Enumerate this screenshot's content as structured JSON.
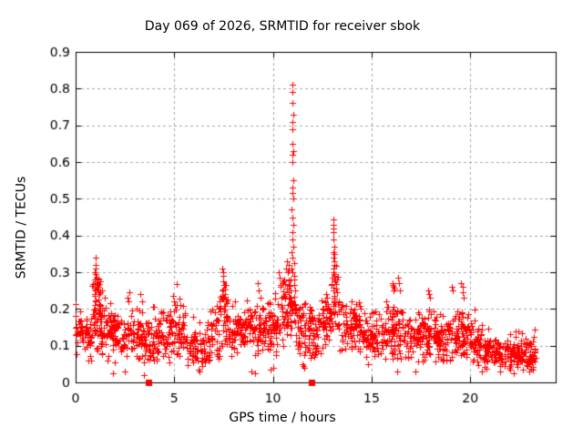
{
  "chart_data": {
    "type": "scatter",
    "title": "Day 069 of 2026, SRMTID for receiver sbok",
    "xlabel": "GPS time / hours",
    "ylabel": "SRMTID / TECUs",
    "xlim": [
      0,
      24.33
    ],
    "ylim": [
      0,
      0.9
    ],
    "xtick_values": [
      0,
      5,
      10,
      15,
      20
    ],
    "xtick_labels": [
      "0",
      "5",
      "10",
      "15",
      "20"
    ],
    "ytick_values": [
      0,
      0.1,
      0.2,
      0.3,
      0.4,
      0.5,
      0.6,
      0.7,
      0.8,
      0.9
    ],
    "ytick_labels": [
      "0",
      "0.1",
      "0.2",
      "0.3",
      "0.4",
      "0.5",
      "0.6",
      "0.7",
      "0.8",
      "0.9"
    ],
    "grid": true,
    "legend": "none",
    "marker": "plus",
    "marker_color": "#ff0000",
    "grid_color": "#a6a6a6",
    "frame_color": "#000000",
    "scatter_band_segments": [
      [
        0.0,
        0.3,
        26,
        0.14,
        0.07
      ],
      [
        0.3,
        0.8,
        42,
        0.12,
        0.07
      ],
      [
        0.8,
        1.25,
        48,
        0.19,
        0.11
      ],
      [
        1.25,
        1.8,
        46,
        0.14,
        0.09
      ],
      [
        1.8,
        2.6,
        62,
        0.12,
        0.07
      ],
      [
        2.6,
        3.4,
        60,
        0.13,
        0.08
      ],
      [
        3.4,
        4.2,
        60,
        0.11,
        0.07
      ],
      [
        4.2,
        5.0,
        62,
        0.13,
        0.08
      ],
      [
        5.0,
        5.6,
        46,
        0.14,
        0.08
      ],
      [
        5.6,
        6.1,
        34,
        0.1,
        0.06
      ],
      [
        6.1,
        6.6,
        28,
        0.085,
        0.055
      ],
      [
        6.6,
        7.3,
        50,
        0.13,
        0.08
      ],
      [
        7.3,
        7.7,
        36,
        0.18,
        0.1
      ],
      [
        7.7,
        8.6,
        66,
        0.14,
        0.08
      ],
      [
        8.6,
        9.6,
        72,
        0.15,
        0.09
      ],
      [
        9.6,
        10.4,
        62,
        0.16,
        0.09
      ],
      [
        10.4,
        10.75,
        30,
        0.19,
        0.1
      ],
      [
        10.75,
        11.15,
        46,
        0.24,
        0.14
      ],
      [
        11.15,
        11.7,
        44,
        0.15,
        0.09
      ],
      [
        11.7,
        12.4,
        56,
        0.13,
        0.08
      ],
      [
        12.4,
        12.95,
        46,
        0.16,
        0.09
      ],
      [
        12.95,
        13.35,
        36,
        0.22,
        0.12
      ],
      [
        13.35,
        14.5,
        86,
        0.15,
        0.08
      ],
      [
        14.5,
        15.5,
        76,
        0.13,
        0.08
      ],
      [
        15.5,
        16.7,
        92,
        0.14,
        0.08
      ],
      [
        16.7,
        18.3,
        118,
        0.13,
        0.08
      ],
      [
        18.3,
        19.3,
        76,
        0.12,
        0.07
      ],
      [
        19.3,
        20.0,
        56,
        0.13,
        0.08
      ],
      [
        20.0,
        20.7,
        50,
        0.11,
        0.07
      ],
      [
        20.7,
        21.5,
        62,
        0.08,
        0.05
      ],
      [
        21.5,
        22.5,
        78,
        0.075,
        0.045
      ],
      [
        22.5,
        23.3,
        64,
        0.08,
        0.05
      ]
    ],
    "scatter_peak_points": [
      [
        0.95,
        0.24
      ],
      [
        0.97,
        0.3
      ],
      [
        0.98,
        0.28
      ],
      [
        1.0,
        0.34
      ],
      [
        1.0,
        0.32
      ],
      [
        1.0,
        0.25
      ],
      [
        1.02,
        0.31
      ],
      [
        1.03,
        0.295
      ],
      [
        1.04,
        0.285
      ],
      [
        1.05,
        0.275
      ],
      [
        1.08,
        0.27
      ],
      [
        1.1,
        0.265
      ],
      [
        1.13,
        0.255
      ],
      [
        1.15,
        0.28
      ],
      [
        1.17,
        0.26
      ],
      [
        1.2,
        0.24
      ],
      [
        1.35,
        0.25
      ],
      [
        1.5,
        0.23
      ],
      [
        2.65,
        0.23
      ],
      [
        2.7,
        0.22
      ],
      [
        3.3,
        0.24
      ],
      [
        3.35,
        0.22
      ],
      [
        4.95,
        0.235
      ],
      [
        5.0,
        0.22
      ],
      [
        5.05,
        0.21
      ],
      [
        7.42,
        0.235
      ],
      [
        7.44,
        0.25
      ],
      [
        7.45,
        0.31
      ],
      [
        7.46,
        0.275
      ],
      [
        7.48,
        0.3
      ],
      [
        7.5,
        0.29
      ],
      [
        7.5,
        0.23
      ],
      [
        7.52,
        0.265
      ],
      [
        7.55,
        0.24
      ],
      [
        7.6,
        0.22
      ],
      [
        8.1,
        0.22
      ],
      [
        9.25,
        0.27
      ],
      [
        9.3,
        0.25
      ],
      [
        9.35,
        0.23
      ],
      [
        10.3,
        0.3
      ],
      [
        10.35,
        0.285
      ],
      [
        10.4,
        0.26
      ],
      [
        10.5,
        0.27
      ],
      [
        10.55,
        0.28
      ],
      [
        10.6,
        0.24
      ],
      [
        10.65,
        0.31
      ],
      [
        10.7,
        0.33
      ],
      [
        11.0,
        0.81
      ],
      [
        11.0,
        0.79
      ],
      [
        10.98,
        0.76
      ],
      [
        11.02,
        0.73
      ],
      [
        11.0,
        0.71
      ],
      [
        10.98,
        0.69
      ],
      [
        11.0,
        0.65
      ],
      [
        11.02,
        0.63
      ],
      [
        10.98,
        0.62
      ],
      [
        11.0,
        0.6
      ],
      [
        11.03,
        0.55
      ],
      [
        10.97,
        0.53
      ],
      [
        11.0,
        0.515
      ],
      [
        11.02,
        0.5
      ],
      [
        10.96,
        0.47
      ],
      [
        11.0,
        0.45
      ],
      [
        11.04,
        0.43
      ],
      [
        10.98,
        0.41
      ],
      [
        11.0,
        0.39
      ],
      [
        11.05,
        0.37
      ],
      [
        10.95,
        0.355
      ],
      [
        11.0,
        0.34
      ],
      [
        11.06,
        0.325
      ],
      [
        10.93,
        0.31
      ],
      [
        11.0,
        0.3
      ],
      [
        11.08,
        0.29
      ],
      [
        10.9,
        0.28
      ],
      [
        11.5,
        0.05
      ],
      [
        11.55,
        0.045
      ],
      [
        11.6,
        0.04
      ],
      [
        12.7,
        0.24
      ],
      [
        12.75,
        0.23
      ],
      [
        13.05,
        0.445
      ],
      [
        13.07,
        0.43
      ],
      [
        13.06,
        0.42
      ],
      [
        13.08,
        0.41
      ],
      [
        13.05,
        0.39
      ],
      [
        13.1,
        0.37
      ],
      [
        13.08,
        0.355
      ],
      [
        13.06,
        0.34
      ],
      [
        13.1,
        0.33
      ],
      [
        13.12,
        0.32
      ],
      [
        13.08,
        0.31
      ],
      [
        13.05,
        0.3
      ],
      [
        13.12,
        0.29
      ],
      [
        13.0,
        0.285
      ],
      [
        13.15,
        0.275
      ],
      [
        12.98,
        0.265
      ],
      [
        13.2,
        0.255
      ],
      [
        13.25,
        0.245
      ],
      [
        14.0,
        0.22
      ],
      [
        16.05,
        0.27
      ],
      [
        16.08,
        0.265
      ],
      [
        16.12,
        0.26
      ],
      [
        16.1,
        0.25
      ],
      [
        16.15,
        0.255
      ],
      [
        16.35,
        0.285
      ],
      [
        16.4,
        0.27
      ],
      [
        16.45,
        0.25
      ],
      [
        17.85,
        0.25
      ],
      [
        17.9,
        0.24
      ],
      [
        17.95,
        0.23
      ],
      [
        19.05,
        0.26
      ],
      [
        19.1,
        0.25
      ],
      [
        19.55,
        0.27
      ],
      [
        19.6,
        0.26
      ],
      [
        19.62,
        0.245
      ],
      [
        19.65,
        0.23
      ],
      [
        1.9,
        0.025
      ],
      [
        2.5,
        0.03
      ],
      [
        3.45,
        0.02
      ],
      [
        6.25,
        0.035
      ],
      [
        6.3,
        0.03
      ],
      [
        6.4,
        0.045
      ],
      [
        8.9,
        0.03
      ],
      [
        9.1,
        0.025
      ],
      [
        9.9,
        0.035
      ],
      [
        10.0,
        0.04
      ],
      [
        14.8,
        0.05
      ],
      [
        16.3,
        0.03
      ],
      [
        17.2,
        0.03
      ],
      [
        18.6,
        0.06
      ],
      [
        20.6,
        0.03
      ],
      [
        21.5,
        0.03
      ],
      [
        22.2,
        0.025
      ],
      [
        23.0,
        0.03
      ]
    ],
    "axis_marker_shape": "filled-square",
    "axis_marker_points": [
      [
        3.68,
        0
      ],
      [
        11.97,
        0
      ]
    ]
  }
}
